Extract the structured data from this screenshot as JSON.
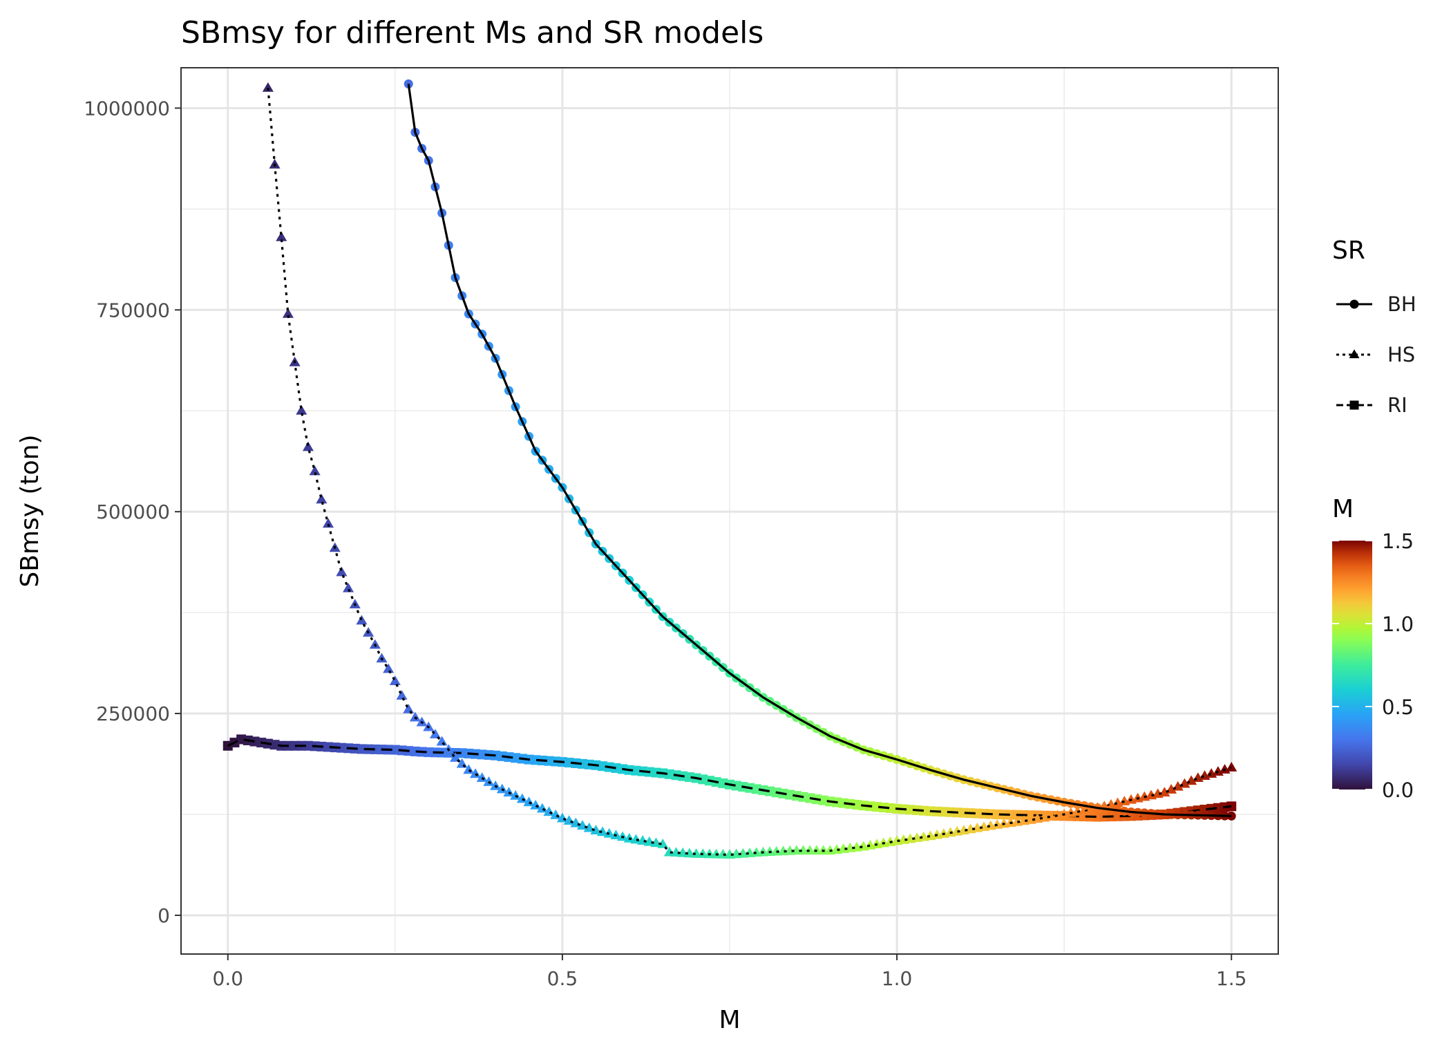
{
  "chart_data": {
    "type": "line",
    "title": "SBmsy for different Ms and SR models",
    "xlabel": "M",
    "ylabel": "SBmsy (ton)",
    "xlim": [
      -0.07,
      1.57
    ],
    "ylim": [
      -48000,
      1050000
    ],
    "x_ticks": [
      0.0,
      0.5,
      1.0,
      1.5
    ],
    "x_tick_labels": [
      "0.0",
      "0.5",
      "1.0",
      "1.5"
    ],
    "y_ticks": [
      0,
      250000,
      500000,
      750000,
      1000000
    ],
    "y_tick_labels": [
      "0",
      "250000",
      "500000",
      "750000",
      "1000000"
    ],
    "grid": true,
    "legend_placement": "right",
    "series": [
      {
        "name": "BH",
        "line_style": "solid",
        "marker": "circle",
        "x": [
          0.27,
          0.28,
          0.29,
          0.3,
          0.32,
          0.34,
          0.36,
          0.38,
          0.4,
          0.43,
          0.46,
          0.5,
          0.55,
          0.6,
          0.65,
          0.7,
          0.75,
          0.8,
          0.85,
          0.9,
          0.95,
          1.0,
          1.05,
          1.1,
          1.15,
          1.2,
          1.25,
          1.3,
          1.35,
          1.4,
          1.45,
          1.5
        ],
        "y": [
          1030000,
          970000,
          950000,
          935000,
          870000,
          790000,
          745000,
          720000,
          690000,
          630000,
          575000,
          530000,
          460000,
          415000,
          370000,
          335000,
          300000,
          270000,
          245000,
          222000,
          205000,
          193000,
          180000,
          168000,
          158000,
          148000,
          140000,
          133000,
          128000,
          125000,
          124000,
          123000
        ]
      },
      {
        "name": "HS",
        "line_style": "dotted",
        "marker": "triangle",
        "x": [
          0.06,
          0.07,
          0.08,
          0.09,
          0.1,
          0.11,
          0.12,
          0.13,
          0.14,
          0.15,
          0.16,
          0.17,
          0.18,
          0.19,
          0.2,
          0.21,
          0.22,
          0.23,
          0.24,
          0.25,
          0.26,
          0.27,
          0.28,
          0.3,
          0.32,
          0.34,
          0.36,
          0.4,
          0.45,
          0.5,
          0.55,
          0.6,
          0.65,
          0.66,
          0.7,
          0.75,
          0.8,
          0.85,
          0.9,
          0.95,
          1.0,
          1.05,
          1.1,
          1.15,
          1.2,
          1.25,
          1.3,
          1.35,
          1.4,
          1.45,
          1.5
        ],
        "y": [
          1025000,
          930000,
          840000,
          745000,
          685000,
          625000,
          580000,
          550000,
          515000,
          485000,
          455000,
          425000,
          405000,
          385000,
          365000,
          350000,
          335000,
          318000,
          305000,
          290000,
          272000,
          255000,
          245000,
          233000,
          215000,
          195000,
          180000,
          160000,
          140000,
          120000,
          105000,
          95000,
          88000,
          78000,
          76000,
          75000,
          78000,
          80000,
          80000,
          85000,
          92000,
          98000,
          105000,
          112000,
          118000,
          125000,
          133000,
          143000,
          152000,
          170000,
          183000
        ]
      },
      {
        "name": "RI",
        "line_style": "dashed",
        "marker": "square",
        "x": [
          0.0,
          0.02,
          0.05,
          0.08,
          0.12,
          0.16,
          0.2,
          0.25,
          0.28,
          0.3,
          0.35,
          0.4,
          0.45,
          0.5,
          0.55,
          0.6,
          0.65,
          0.7,
          0.75,
          0.8,
          0.85,
          0.9,
          0.95,
          1.0,
          1.05,
          1.1,
          1.15,
          1.2,
          1.25,
          1.3,
          1.35,
          1.4,
          1.45,
          1.5
        ],
        "y": [
          210000,
          218000,
          214000,
          210000,
          210000,
          208000,
          206000,
          205000,
          203000,
          202000,
          201000,
          198000,
          193000,
          190000,
          186000,
          180000,
          176000,
          170000,
          162000,
          155000,
          148000,
          141000,
          136000,
          132000,
          129000,
          127000,
          125000,
          124000,
          123000,
          122000,
          123000,
          125000,
          130000,
          135000
        ]
      }
    ],
    "colorbar": {
      "title": "M",
      "range": [
        0.0,
        1.5
      ],
      "tick_labels": [
        "0.0",
        "0.5",
        "1.0",
        "1.5"
      ],
      "tick_values": [
        0.0,
        0.5,
        1.0,
        1.5
      ],
      "colormap": "turbo"
    },
    "legend": {
      "title": "SR",
      "entries": [
        "BH",
        "HS",
        "RI"
      ]
    }
  }
}
